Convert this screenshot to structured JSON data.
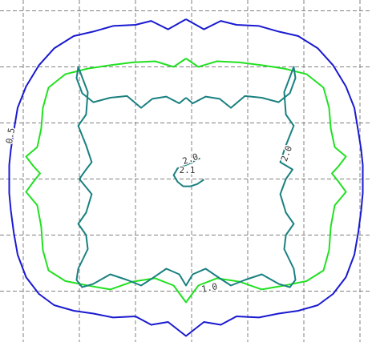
{
  "chart_data": {
    "type": "line",
    "title": "",
    "xlabel": "",
    "ylabel": "",
    "grid": true,
    "xlim": [
      -3.2,
      3.2
    ],
    "ylim": [
      -3.05,
      3.05
    ],
    "series": [
      {
        "key": "c05",
        "color": "#1a1ad0",
        "x": [
          0.0,
          0.32,
          0.62,
          0.9,
          1.3,
          1.65,
          2.0,
          2.35,
          2.62,
          2.85,
          3.0,
          3.07,
          3.12,
          3.15,
          3.15,
          3.15,
          3.12,
          3.07,
          3.0,
          2.85,
          2.62,
          2.35,
          2.0,
          1.65,
          1.3,
          0.9,
          0.62,
          0.32,
          0.0,
          -0.32,
          -0.62,
          -0.9,
          -1.3,
          -1.65,
          -2.0,
          -2.35,
          -2.62,
          -2.85,
          -3.0,
          -3.07,
          -3.12,
          -3.15,
          -3.15,
          -3.15,
          -3.12,
          -3.07,
          -3.0,
          -2.85,
          -2.62,
          -2.35,
          -2.0,
          -1.65,
          -1.3,
          -0.9,
          -0.62,
          -0.32,
          0.0
        ],
        "y": [
          2.7,
          2.52,
          2.67,
          2.6,
          2.58,
          2.48,
          2.4,
          2.18,
          1.88,
          1.5,
          1.12,
          0.7,
          0.38,
          0.1,
          -0.12,
          -0.4,
          -0.72,
          -1.1,
          -1.5,
          -1.9,
          -2.2,
          -2.4,
          -2.5,
          -2.55,
          -2.62,
          -2.6,
          -2.75,
          -2.7,
          -2.95,
          -2.7,
          -2.75,
          -2.6,
          -2.62,
          -2.55,
          -2.5,
          -2.4,
          -2.2,
          -1.9,
          -1.5,
          -1.1,
          -0.72,
          -0.4,
          -0.12,
          0.1,
          0.38,
          0.7,
          1.12,
          1.5,
          1.88,
          2.18,
          2.4,
          2.48,
          2.58,
          2.6,
          2.67,
          2.52,
          2.7
        ]
      },
      {
        "key": "c10",
        "color": "#22e022",
        "x": [
          0.0,
          0.22,
          0.55,
          0.95,
          1.35,
          1.75,
          2.15,
          2.45,
          2.55,
          2.58,
          2.65,
          2.85,
          2.72,
          2.6,
          2.72,
          2.85,
          2.65,
          2.58,
          2.55,
          2.45,
          2.15,
          1.75,
          1.35,
          0.95,
          0.55,
          0.22,
          0.0,
          -0.22,
          -0.55,
          -0.95,
          -1.35,
          -1.75,
          -2.15,
          -2.45,
          -2.55,
          -2.58,
          -2.65,
          -2.85,
          -2.72,
          -2.6,
          -2.72,
          -2.85,
          -2.65,
          -2.58,
          -2.55,
          -2.45,
          -2.15,
          -1.75,
          -1.35,
          -0.95,
          -0.55,
          -0.22,
          0.0
        ],
        "y": [
          2.0,
          1.85,
          1.95,
          1.93,
          1.88,
          1.82,
          1.72,
          1.48,
          1.12,
          0.75,
          0.42,
          0.25,
          0.08,
          -0.05,
          -0.2,
          -0.38,
          -0.62,
          -1.0,
          -1.42,
          -1.78,
          -1.97,
          -2.05,
          -2.12,
          -1.98,
          -1.92,
          -2.05,
          -2.35,
          -2.05,
          -1.92,
          -1.98,
          -2.12,
          -2.05,
          -1.97,
          -1.78,
          -1.42,
          -1.0,
          -0.62,
          -0.38,
          -0.2,
          -0.05,
          0.08,
          0.25,
          0.42,
          0.75,
          1.12,
          1.48,
          1.72,
          1.82,
          1.88,
          1.93,
          1.95,
          1.85,
          2.0
        ]
      },
      {
        "key": "c20",
        "color": "#1a8080",
        "x": [
          0.0,
          0.12,
          0.35,
          0.6,
          0.8,
          1.05,
          1.35,
          1.65,
          1.85,
          1.95,
          1.92,
          1.75,
          1.78,
          1.92,
          1.78,
          1.68,
          1.9,
          1.78,
          1.68,
          1.78,
          1.92,
          1.78,
          1.75,
          1.92,
          1.95,
          1.85,
          1.65,
          1.35,
          1.05,
          0.8,
          0.6,
          0.35,
          0.12,
          0.0,
          -0.12,
          -0.35,
          -0.6,
          -0.8,
          -1.05,
          -1.35,
          -1.65,
          -1.85,
          -1.95,
          -1.92,
          -1.75,
          -1.78,
          -1.92,
          -1.78,
          -1.68,
          -1.9,
          -1.78,
          -1.68,
          -1.78,
          -1.92,
          -1.78,
          -1.75,
          -1.92,
          -1.95,
          -1.85,
          -1.65,
          -1.35,
          -1.05,
          -0.8,
          -0.6,
          -0.35,
          -0.12,
          0.0
        ],
        "y": [
          1.3,
          1.2,
          1.32,
          1.28,
          1.12,
          1.33,
          1.3,
          1.22,
          1.38,
          1.65,
          1.85,
          1.4,
          1.0,
          0.8,
          0.45,
          0.15,
          0.02,
          -0.15,
          -0.42,
          -0.75,
          -0.95,
          -1.15,
          -1.4,
          -1.75,
          -1.95,
          -2.08,
          -2.02,
          -1.85,
          -1.95,
          -2.05,
          -1.92,
          -1.75,
          -1.85,
          -2.05,
          -1.85,
          -1.75,
          -1.92,
          -2.05,
          -1.95,
          -1.85,
          -2.02,
          -2.08,
          -1.95,
          -1.75,
          -1.4,
          -1.15,
          -0.95,
          -0.75,
          -0.42,
          -0.15,
          0.02,
          0.15,
          0.45,
          0.8,
          1.0,
          1.4,
          1.85,
          1.65,
          1.38,
          1.22,
          1.3,
          1.33,
          1.12,
          1.28,
          1.32,
          1.2,
          1.3
        ]
      },
      {
        "key": "c_center",
        "color": "#1a8080",
        "x": [
          0.25,
          0.05,
          -0.15,
          -0.22,
          -0.15,
          -0.05,
          0.08,
          0.2,
          0.32
        ],
        "y": [
          0.22,
          0.12,
          0.04,
          -0.08,
          -0.2,
          -0.28,
          -0.28,
          -0.24,
          -0.16
        ]
      }
    ],
    "labels": [
      {
        "text": "0.5",
        "x": -3.12,
        "y": 0.62,
        "rotate": -80,
        "color": "#1a1ad0"
      },
      {
        "text": "1.0",
        "x": 0.42,
        "y": -2.1,
        "rotate": -12,
        "color": "#22e022"
      },
      {
        "text": "2.0",
        "x": 1.8,
        "y": 0.3,
        "rotate": -70,
        "color": "#1a8080"
      },
      {
        "text": "2.0",
        "x": 0.08,
        "y": 0.2,
        "rotate": -20,
        "color": "#1a8080"
      },
      {
        "text": "2.1",
        "x": 0.02,
        "y": 0.0,
        "rotate": 0,
        "color": "#1a8080"
      }
    ],
    "grid_x": [
      -2.9,
      -1.9,
      -0.9,
      0.1,
      1.1,
      2.1,
      3.1
    ],
    "grid_y": [
      2.85,
      1.85,
      0.85,
      -0.15,
      -1.15,
      -2.15
    ]
  }
}
